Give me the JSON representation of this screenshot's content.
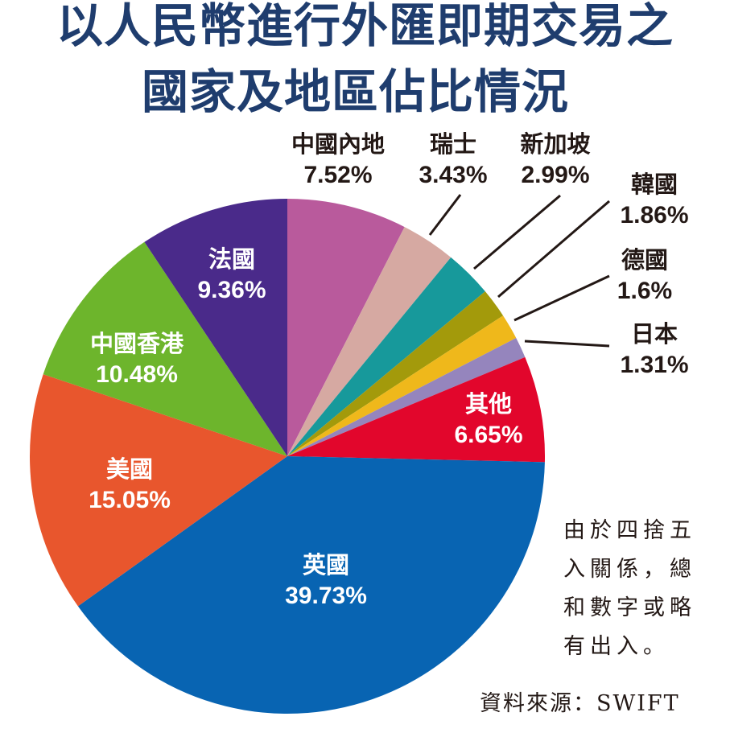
{
  "title": {
    "line1": "以人民幣進行外匯即期交易之",
    "line2": "國家及地區佔比情況",
    "color": "#1f3d6e"
  },
  "chart_data": {
    "type": "pie",
    "title": "以人民幣進行外匯即期交易之國家及地區佔比情況",
    "start_angle": "12 o'clock, clockwise",
    "unit": "%",
    "categories": [
      "中國內地",
      "瑞士",
      "新加坡",
      "韓國",
      "德國",
      "日本",
      "其他",
      "英國",
      "美國",
      "中國香港",
      "法國"
    ],
    "values": [
      7.52,
      3.43,
      2.99,
      1.86,
      1.6,
      1.31,
      6.65,
      39.73,
      15.05,
      10.48,
      9.36
    ],
    "labels": [
      "7.52%",
      "3.43%",
      "2.99%",
      "1.86%",
      "1.6%",
      "1.31%",
      "6.65%",
      "39.73%",
      "15.05%",
      "10.48%",
      "9.36%"
    ],
    "colors": [
      "#b95a9c",
      "#d6a9a2",
      "#17999b",
      "#a39a0b",
      "#efb81b",
      "#9585bd",
      "#e2062c",
      "#0864b2",
      "#e8562d",
      "#6db52c",
      "#4a2a8a"
    ],
    "legend": "none (direct labels)"
  },
  "labels": {
    "mainland": {
      "name": "中國內地",
      "value": "7.52%"
    },
    "switzerland": {
      "name": "瑞士",
      "value": "3.43%"
    },
    "singapore": {
      "name": "新加坡",
      "value": "2.99%"
    },
    "korea": {
      "name": "韓國",
      "value": "1.86%"
    },
    "germany": {
      "name": "德國",
      "value": "1.6%"
    },
    "japan": {
      "name": "日本",
      "value": "1.31%"
    },
    "others": {
      "name": "其他",
      "value": "6.65%"
    },
    "uk": {
      "name": "英國",
      "value": "39.73%"
    },
    "us": {
      "name": "美國",
      "value": "15.05%"
    },
    "hongkong": {
      "name": "中國香港",
      "value": "10.48%"
    },
    "france": {
      "name": "法國",
      "value": "9.36%"
    }
  },
  "note": {
    "lines": [
      "由於四捨五",
      "入關係，總",
      "和數字或略",
      "有出入。"
    ]
  },
  "source": "資料來源：SWIFT"
}
